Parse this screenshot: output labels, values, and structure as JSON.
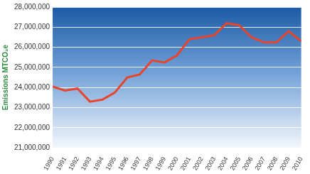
{
  "chart_data": {
    "type": "line",
    "y_label": "Emissions MTCO₂e",
    "categories": [
      "1990",
      "1991",
      "1992",
      "1993",
      "1994",
      "1995",
      "1996",
      "1997",
      "1998",
      "1999",
      "2000",
      "2001",
      "2002",
      "2003",
      "2004",
      "2005",
      "2006",
      "2007",
      "2008",
      "2009",
      "2010"
    ],
    "values": [
      24050000,
      23850000,
      23950000,
      23300000,
      23400000,
      23750000,
      24500000,
      24650000,
      25350000,
      25250000,
      25600000,
      26400000,
      26500000,
      26600000,
      27200000,
      27100000,
      26500000,
      26250000,
      26250000,
      26800000,
      26300000
    ],
    "color": "#e8452c",
    "ylim": [
      21000000,
      28000000
    ],
    "yticks": [
      {
        "value": 21000000,
        "label": "21,000,000"
      },
      {
        "value": 22000000,
        "label": "22,000,000"
      },
      {
        "value": 23000000,
        "label": "23,000,000"
      },
      {
        "value": 24000000,
        "label": "24,000,000"
      },
      {
        "value": 25000000,
        "label": "25,000,000"
      },
      {
        "value": 26000000,
        "label": "26,000,000"
      },
      {
        "value": 27000000,
        "label": "27,000,000"
      },
      {
        "value": 28000000,
        "label": "28,000,000"
      }
    ],
    "grid": true
  }
}
